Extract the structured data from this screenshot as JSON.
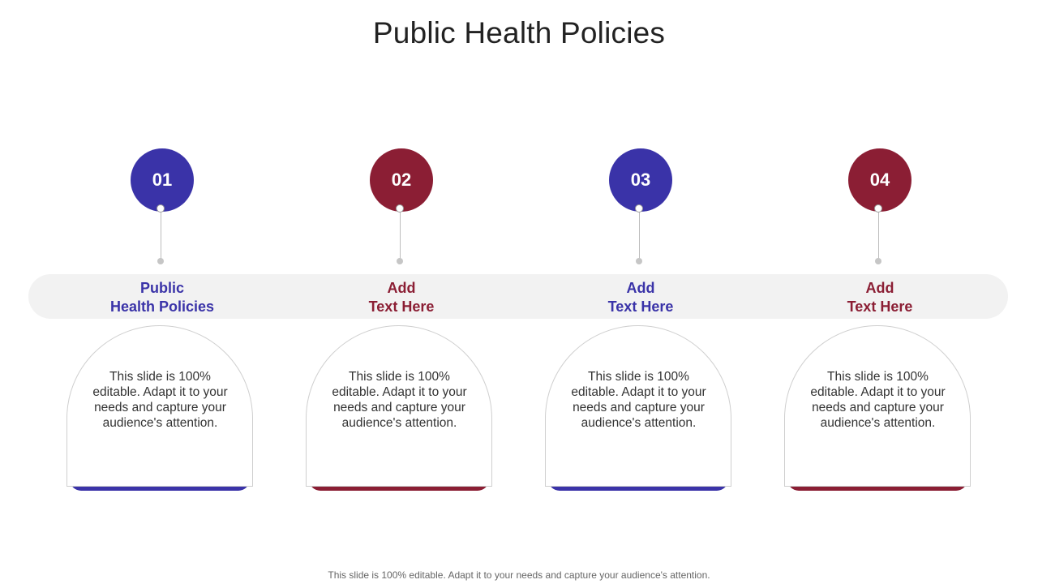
{
  "title": "Public Health Policies",
  "colors": {
    "blue": "#3a33a8",
    "maroon": "#8b1e34",
    "band": "#f2f2f2"
  },
  "steps": [
    {
      "number": "01",
      "label_line1": "Public",
      "label_line2": "Health Policies",
      "color": "#3a33a8",
      "text": "This slide is 100% editable. Adapt it to your needs and capture your audience's attention."
    },
    {
      "number": "02",
      "label_line1": "Add",
      "label_line2": "Text Here",
      "color": "#8b1e34",
      "text": "This slide is 100% editable. Adapt it to your needs and capture your audience's attention."
    },
    {
      "number": "03",
      "label_line1": "Add",
      "label_line2": "Text Here",
      "color": "#3a33a8",
      "text": "This slide is 100% editable. Adapt it to your needs and capture your audience's attention."
    },
    {
      "number": "04",
      "label_line1": "Add",
      "label_line2": "Text Here",
      "color": "#8b1e34",
      "text": "This slide is 100% editable. Adapt it to your needs and capture your audience's attention."
    }
  ],
  "footer": "This slide is 100% editable. Adapt it to your needs and capture your audience's attention."
}
